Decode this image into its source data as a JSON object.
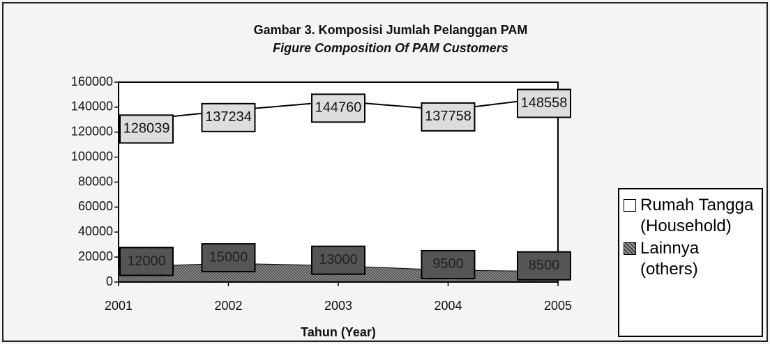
{
  "chart_data": {
    "type": "area",
    "title": "Gambar 3. Komposisi Jumlah Pelanggan PAM",
    "subtitle": "Figure Composition Of PAM Customers",
    "xlabel": "Tahun (Year)",
    "categories": [
      "2001",
      "2002",
      "2003",
      "2004",
      "2005"
    ],
    "series": [
      {
        "name": "Rumah Tangga (Household)",
        "color": "#ffffff",
        "values": [
          128039,
          137234,
          144760,
          137758,
          148558
        ]
      },
      {
        "name": "Lainnya (others)",
        "color": "#8a8a8a",
        "values": [
          12000,
          15000,
          13000,
          9500,
          8500
        ]
      }
    ],
    "ylim": [
      0,
      160000
    ],
    "yticks": [
      0,
      20000,
      40000,
      60000,
      80000,
      100000,
      120000,
      140000,
      160000
    ],
    "legend": "right"
  }
}
